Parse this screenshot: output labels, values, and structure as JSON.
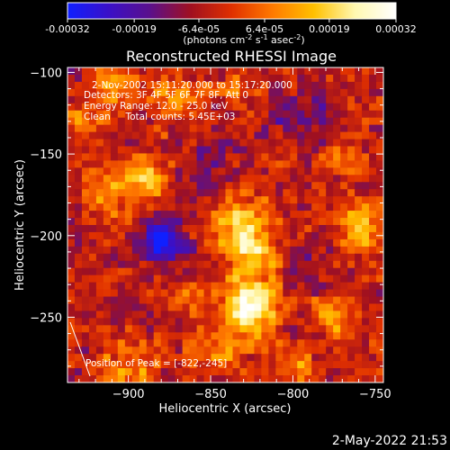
{
  "colorbar": {
    "ticks": [
      "-0.00032",
      "-0.00019",
      "-6.4e-05",
      "6.4e-05",
      "0.00019",
      "0.00032"
    ],
    "tick_values": [
      -0.00032,
      -0.00019,
      -6.4e-05,
      6.4e-05,
      0.00019,
      0.00032
    ],
    "range": [
      -0.00032,
      0.00032
    ],
    "units_html": "(photons cm<tspan dy='-4' font-size='8'>-2</tspan><tspan dy='4'> s</tspan><tspan dy='-4' font-size='8'>-1</tspan><tspan dy='4'> asec</tspan><tspan dy='-4' font-size='8'>-2</tspan><tspan dy='4'>)</tspan>",
    "colors": [
      "#1020ff",
      "#3a10c8",
      "#5a108c",
      "#a01020",
      "#e03000",
      "#ff7a00",
      "#ffc000",
      "#fff8b0",
      "#ffffff"
    ]
  },
  "info": {
    "time_range": "2-Nov-2002 15:11:20.000 to 15:17:20.000",
    "detectors": "Detectors: 3F 4F 5F 6F 7F 8F, Att 0",
    "energy": "Energy Range: 12.0 - 25.0 keV",
    "clean": "Clean     Total counts: 5.45E+03",
    "peak": "Position of Peak = [-822,-245]"
  },
  "footer": {
    "timestamp": "2-May-2022 21:53"
  },
  "chart_data": {
    "type": "heatmap",
    "title": "Reconstructed RHESSI Image",
    "xlabel": "Heliocentric X (arcsec)",
    "ylabel": "Heliocentric Y (arcsec)",
    "xlim": [
      -937,
      -745
    ],
    "ylim": [
      -290,
      -97
    ],
    "xticks": [
      -900,
      -850,
      -800,
      -750
    ],
    "yticks": [
      -100,
      -150,
      -200,
      -250
    ],
    "xtick_labels": [
      "−900",
      "−850",
      "−800",
      "−750"
    ],
    "ytick_labels": [
      "−100",
      "−150",
      "−200",
      "−250"
    ],
    "peak": [
      -822,
      -245
    ],
    "value_range": [
      -0.00032,
      0.00032
    ],
    "sources": [
      {
        "x": -826,
        "y": -245,
        "sigma": 12,
        "amp": 0.00032
      },
      {
        "x": -832,
        "y": -195,
        "sigma": 14,
        "amp": 0.00022
      },
      {
        "x": -822,
        "y": -215,
        "sigma": 10,
        "amp": 0.00018
      },
      {
        "x": -845,
        "y": -270,
        "sigma": 10,
        "amp": 0.00014
      },
      {
        "x": -890,
        "y": -165,
        "sigma": 12,
        "amp": 0.00017
      },
      {
        "x": -915,
        "y": -175,
        "sigma": 8,
        "amp": 0.00014
      },
      {
        "x": -930,
        "y": -130,
        "sigma": 8,
        "amp": 0.00013
      },
      {
        "x": -910,
        "y": -110,
        "sigma": 9,
        "amp": 0.00012
      },
      {
        "x": -870,
        "y": -115,
        "sigma": 10,
        "amp": 0.00011
      },
      {
        "x": -835,
        "y": -110,
        "sigma": 7,
        "amp": 0.0001
      },
      {
        "x": -760,
        "y": -195,
        "sigma": 10,
        "amp": 0.00019
      },
      {
        "x": -775,
        "y": -250,
        "sigma": 9,
        "amp": 0.00016
      },
      {
        "x": -770,
        "y": -150,
        "sigma": 8,
        "amp": 0.00013
      },
      {
        "x": -900,
        "y": -280,
        "sigma": 10,
        "amp": 0.00015
      },
      {
        "x": -800,
        "y": -280,
        "sigma": 8,
        "amp": 0.00013
      },
      {
        "x": -860,
        "y": -240,
        "sigma": 8,
        "amp": 0.0001
      },
      {
        "x": -880,
        "y": -205,
        "sigma": 10,
        "amp": -0.00028
      },
      {
        "x": -855,
        "y": -160,
        "sigma": 14,
        "amp": -0.0001
      },
      {
        "x": -795,
        "y": -130,
        "sigma": 14,
        "amp": -0.0001
      },
      {
        "x": -795,
        "y": -215,
        "sigma": 12,
        "amp": -8e-05
      }
    ]
  }
}
